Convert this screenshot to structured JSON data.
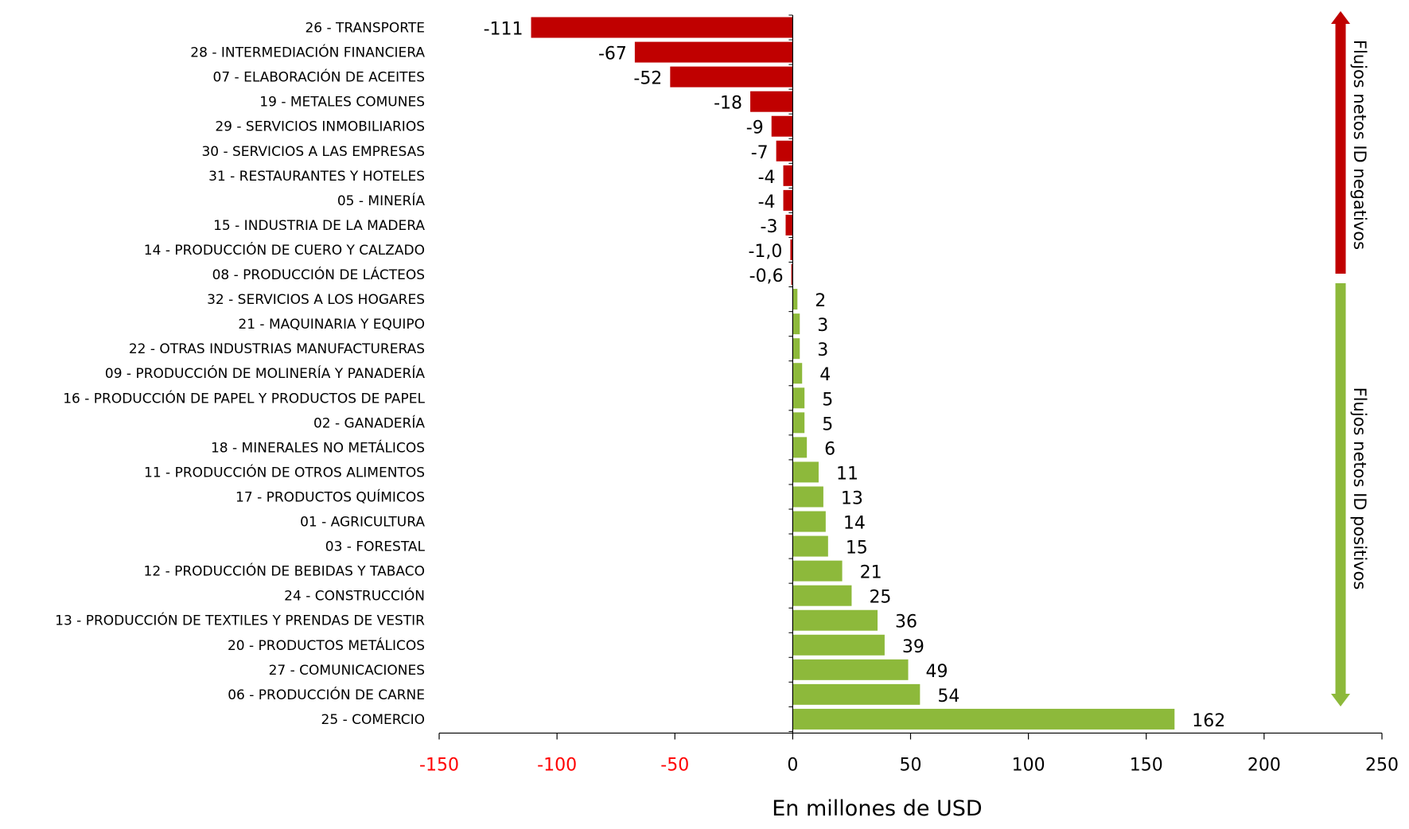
{
  "chart_data": {
    "type": "bar",
    "orientation": "horizontal",
    "categories": [
      "26 - TRANSPORTE",
      "28 - INTERMEDIACIÓN FINANCIERA",
      "07 - ELABORACIÓN DE ACEITES",
      "19 - METALES COMUNES",
      "29 - SERVICIOS INMOBILIARIOS",
      "30 - SERVICIOS A LAS EMPRESAS",
      "31 - RESTAURANTES Y HOTELES",
      "05 - MINERÍA",
      "15 - INDUSTRIA DE LA MADERA",
      "14 - PRODUCCIÓN DE CUERO Y CALZADO",
      "08 - PRODUCCIÓN DE LÁCTEOS",
      "32 - SERVICIOS A LOS HOGARES",
      "21 - MAQUINARIA Y EQUIPO",
      "22 - OTRAS INDUSTRIAS MANUFACTURERAS",
      "09 - PRODUCCIÓN DE MOLINERÍA Y PANADERÍA",
      "16 - PRODUCCIÓN DE PAPEL Y PRODUCTOS DE PAPEL",
      "02 - GANADERÍA",
      "18 - MINERALES NO METÁLICOS",
      "11 - PRODUCCIÓN DE OTROS ALIMENTOS",
      "17 - PRODUCTOS QUÍMICOS",
      "01 - AGRICULTURA",
      "03 - FORESTAL",
      "12 - PRODUCCIÓN DE BEBIDAS Y TABACO",
      "24 - CONSTRUCCIÓN",
      "13 - PRODUCCIÓN DE TEXTILES Y PRENDAS DE VESTIR",
      "20 - PRODUCTOS METÁLICOS",
      "27 - COMUNICACIONES",
      "06 - PRODUCCIÓN DE CARNE",
      "25 - COMERCIO"
    ],
    "values": [
      -111,
      -67,
      -52,
      -18,
      -9,
      -7,
      -4,
      -4,
      -3,
      -1.0,
      -0.6,
      2,
      3,
      3,
      4,
      5,
      5,
      6,
      11,
      13,
      14,
      15,
      21,
      25,
      36,
      39,
      49,
      54,
      162
    ],
    "value_labels": [
      "-111",
      "-67",
      "-52",
      "-18",
      "-9",
      "-7",
      "-4",
      "-4",
      "-3",
      "-1,0",
      "-0,6",
      "2",
      "3",
      "3",
      "4",
      "5",
      "5",
      "6",
      "11",
      "13",
      "14",
      "15",
      "21",
      "25",
      "36",
      "39",
      "49",
      "54",
      "162"
    ],
    "xlabel": "En millones de USD",
    "ylabel": "",
    "xlim": [
      -150,
      250
    ],
    "xticks": [
      -150,
      -100,
      -50,
      0,
      50,
      100,
      150,
      200,
      250
    ],
    "xtick_labels": [
      "-150",
      "-100",
      "-50",
      "0",
      "50",
      "100",
      "150",
      "200",
      "250"
    ],
    "grid": false,
    "colors": {
      "negative": "#C00000",
      "positive": "#8DB93B",
      "negative_tick_label": "#FF0000",
      "positive_tick_label": "#000000"
    },
    "annotations": {
      "negative_arrow_label": "Flujos netos ID negativos",
      "positive_arrow_label": "Flujos netos ID positivos"
    }
  }
}
